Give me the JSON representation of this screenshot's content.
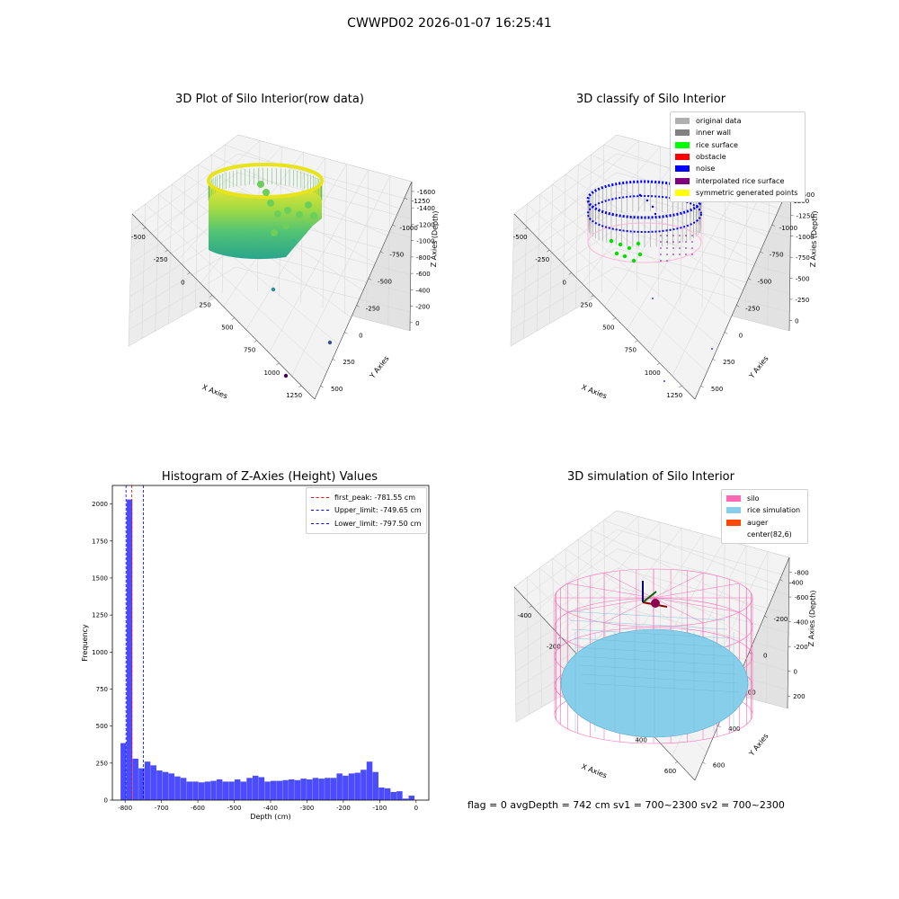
{
  "figure": {
    "suptitle": "CWWPD02 2026-01-07 16:25:41",
    "status_line": "flag = 0     avgDepth = 742 cm  sv1 = 700~2300  sv2 = 700~2300"
  },
  "panels": {
    "raw": {
      "title": "3D Plot of Silo Interior(row data)",
      "xlabel": "X Axies",
      "ylabel": "Y Axies",
      "zlabel": "Z Axies (Depth)",
      "x_ticks": [
        "-500",
        "-250",
        "0",
        "250",
        "500",
        "750",
        "1000",
        "1250"
      ],
      "y_ticks": [
        "500",
        "250",
        "0",
        "-250",
        "-500",
        "-750",
        "-1000",
        "-1250"
      ],
      "z_ticks": [
        "0",
        "-200",
        "-400",
        "-600",
        "-800",
        "-1000",
        "-1200",
        "-1400",
        "-1600"
      ]
    },
    "classify": {
      "title": "3D classify of Silo Interior",
      "xlabel": "X Axies",
      "ylabel": "Y Axies",
      "zlabel": "Z Axies (Depth)",
      "x_ticks": [
        "-500",
        "-250",
        "0",
        "250",
        "500",
        "750",
        "1000",
        "1250"
      ],
      "y_ticks": [
        "500",
        "250",
        "0",
        "-250",
        "-500",
        "-750",
        "-1000",
        "-1250"
      ],
      "z_ticks": [
        "0",
        "-250",
        "-500",
        "-750",
        "-1000",
        "-1250",
        "-1500"
      ],
      "legend": [
        {
          "label": "original data",
          "color": "#b0b0b0"
        },
        {
          "label": "inner wall",
          "color": "#808080"
        },
        {
          "label": "rice surface",
          "color": "#00ff00"
        },
        {
          "label": "obstacle",
          "color": "#ff0000"
        },
        {
          "label": "noise",
          "color": "#0000ff"
        },
        {
          "label": "interpolated rice surface",
          "color": "#800080"
        },
        {
          "label": "symmetric generated points",
          "color": "#ffff00"
        }
      ]
    },
    "histogram": {
      "title": "Histogram of Z-Axies (Height) Values",
      "xlabel": "Depth (cm)",
      "ylabel": "Frequency",
      "legend": [
        {
          "label": "first_peak: -781.55 cm",
          "color": "#ff0000"
        },
        {
          "label": "Upper_limit: -749.65 cm",
          "color": "#0000ff"
        },
        {
          "label": "Lower_limit: -797.50 cm",
          "color": "#0000ff"
        }
      ]
    },
    "simulation": {
      "title": "3D simulation of Silo Interior",
      "xlabel": "X Axies",
      "ylabel": "Y Axies",
      "zlabel": "Z Axies (Depth)",
      "x_ticks": [
        "-400",
        "-200",
        "0",
        "200",
        "400",
        "600"
      ],
      "y_ticks": [
        "600",
        "400",
        "200",
        "0",
        "-200",
        "-400"
      ],
      "z_ticks": [
        "200",
        "0",
        "-200",
        "-400",
        "-600",
        "-800"
      ],
      "legend": [
        {
          "label": "silo",
          "color": "#ff69b4"
        },
        {
          "label": "rice simulation",
          "color": "#87ceeb"
        },
        {
          "label": "auger",
          "color": "#ff4500"
        },
        {
          "label": "center(82,6)",
          "color": ""
        }
      ]
    }
  },
  "chart_data": [
    {
      "type": "bar",
      "title": "Histogram of Z-Axies (Height) Values",
      "xlabel": "Depth (cm)",
      "ylabel": "Frequency",
      "xlim": [
        -835,
        35
      ],
      "ylim": [
        0,
        2125
      ],
      "x_ticks": [
        -800,
        -700,
        -600,
        -500,
        -400,
        -300,
        -200,
        -100,
        0
      ],
      "y_ticks": [
        0,
        250,
        500,
        750,
        1000,
        1250,
        1500,
        1750,
        2000
      ],
      "bar_color": "#0000ff",
      "bin_left_edges": [
        -812.5,
        -796,
        -779.5,
        -763,
        -746.5,
        -730,
        -713.5,
        -697,
        -680.5,
        -664,
        -647.5,
        -631,
        -614.5,
        -598,
        -581.5,
        -565,
        -548.5,
        -532,
        -515.5,
        -499,
        -482.5,
        -466,
        -449.5,
        -433,
        -416.5,
        -400,
        -383.5,
        -367,
        -350.5,
        -334,
        -317.5,
        -301,
        -284.5,
        -268,
        -251.5,
        -235,
        -218.5,
        -202,
        -185.5,
        -169,
        -152.5,
        -136,
        -119.5,
        -103,
        -86.5,
        -70,
        -53.5,
        -37,
        -20.5,
        -4
      ],
      "bin_width": 16.5,
      "values": [
        385,
        2030,
        280,
        215,
        260,
        235,
        200,
        190,
        180,
        160,
        150,
        125,
        125,
        120,
        125,
        130,
        140,
        125,
        125,
        140,
        125,
        150,
        165,
        155,
        125,
        130,
        130,
        135,
        140,
        135,
        145,
        140,
        150,
        145,
        150,
        150,
        180,
        165,
        180,
        185,
        205,
        260,
        190,
        85,
        80,
        55,
        60,
        10,
        30,
        0
      ],
      "vlines": [
        {
          "label": "first_peak: -781.55 cm",
          "x": -781.55,
          "color": "#ff0000"
        },
        {
          "label": "Upper_limit: -749.65 cm",
          "x": -749.65,
          "color": "#0000ff"
        },
        {
          "label": "Lower_limit: -797.50 cm",
          "x": -797.5,
          "color": "#0000ff"
        }
      ]
    }
  ]
}
